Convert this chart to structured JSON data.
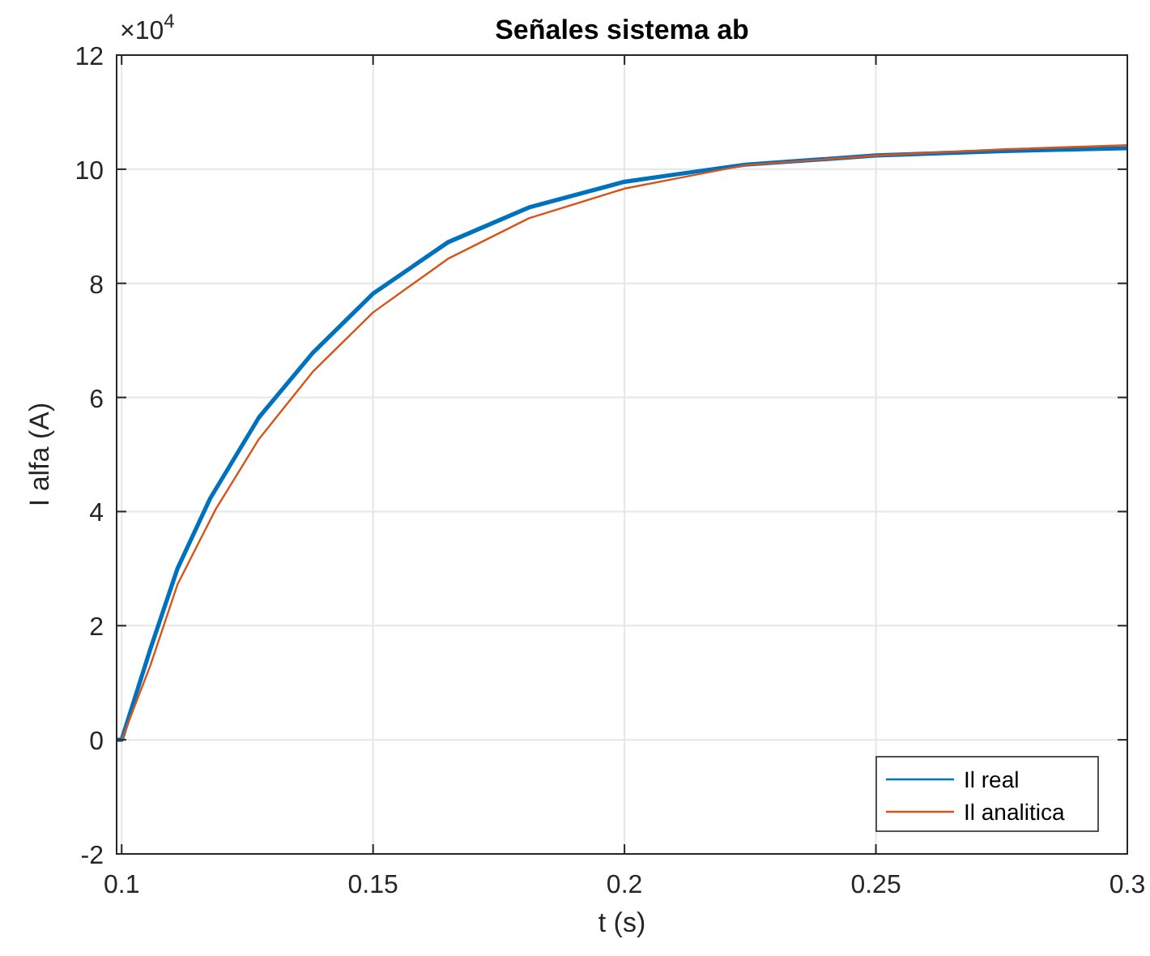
{
  "chart_data": {
    "type": "line",
    "title": "Señales sistema ab",
    "xlabel": "t (s)",
    "ylabel": "I alfa (A)",
    "annotations": [
      "×10$^{4}$"
    ],
    "xlim": [
      0.099,
      0.3
    ],
    "xticks": [
      0.1,
      0.15,
      0.2,
      0.25,
      0.3
    ],
    "ylim": [
      -2,
      12
    ],
    "yticks": [
      -2,
      0,
      2,
      4,
      6,
      8,
      10,
      12
    ],
    "grid": true,
    "legend": "bottom right",
    "series": [
      {
        "name": "Il real",
        "color": "#0072bd",
        "x": [
          0.099,
          0.1,
          0.1057,
          0.1111,
          0.1176,
          0.1273,
          0.138,
          0.15,
          0.1649,
          0.181,
          0.2,
          0.2111,
          0.224,
          0.25,
          0.2756,
          0.3
        ],
        "values": [
          0,
          0,
          1.59,
          3.0,
          4.23,
          5.65,
          6.78,
          7.82,
          8.72,
          9.33,
          9.78,
          9.92,
          10.08,
          10.24,
          10.32,
          10.37
        ]
      },
      {
        "name": "Il analitica",
        "color": "#d95319",
        "x": [
          0.099,
          0.1,
          0.1057,
          0.1111,
          0.1187,
          0.1273,
          0.138,
          0.15,
          0.1649,
          0.181,
          0.2,
          0.2111,
          0.224,
          0.25,
          0.2756,
          0.3
        ],
        "values": [
          0,
          0,
          1.3,
          2.72,
          4.04,
          5.27,
          6.45,
          7.49,
          8.43,
          9.14,
          9.66,
          9.85,
          10.07,
          10.24,
          10.35,
          10.42
        ]
      }
    ]
  }
}
